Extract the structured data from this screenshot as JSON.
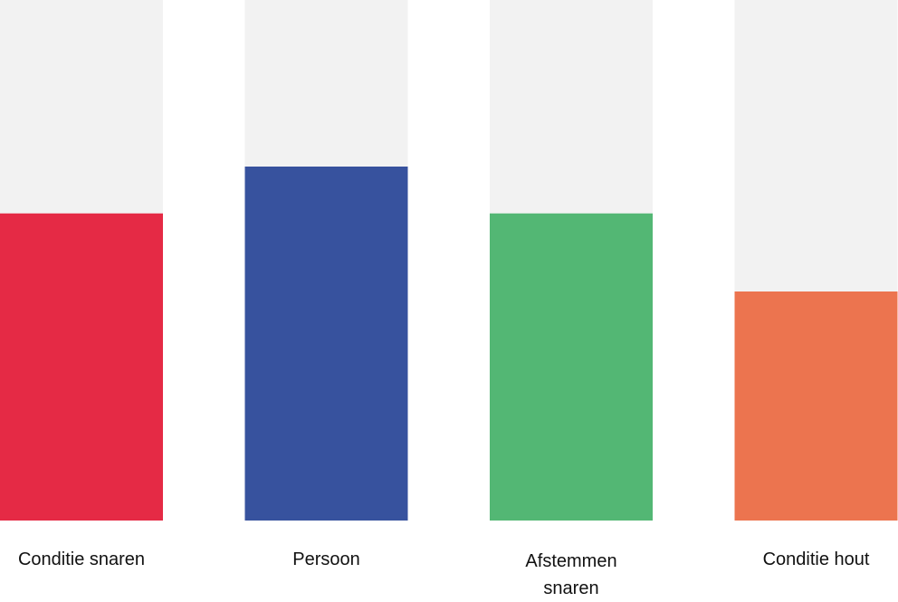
{
  "chart_data": {
    "type": "bar",
    "categories": [
      "Conditie snaren",
      "Persoon",
      "Afstemmen snaren",
      "Conditie hout"
    ],
    "values": [
      59,
      68,
      59,
      44
    ],
    "ylim": [
      0,
      100
    ],
    "colors": [
      "#e52a45",
      "#37529e",
      "#53b774",
      "#ec744f"
    ],
    "track_color": "#f2f2f2",
    "grid": false,
    "legend": "none"
  }
}
